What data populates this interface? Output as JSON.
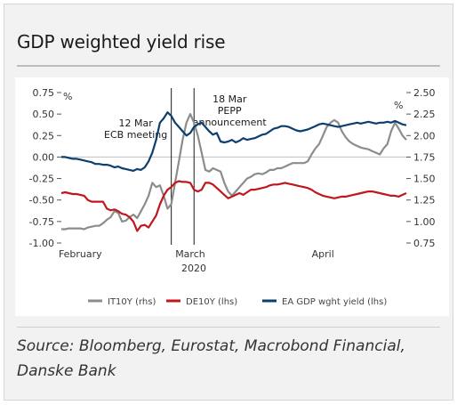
{
  "title": "GDP weighted yield rise",
  "source": "Source: Bloomberg, Eurostat, Macrobond Financial, Danske Bank",
  "chart_data": {
    "type": "line",
    "x": [
      0,
      1,
      2,
      3,
      4,
      5,
      6,
      7,
      8,
      9,
      10,
      11,
      12,
      13,
      14,
      15,
      16,
      17,
      18,
      19,
      20,
      21,
      22,
      23,
      24,
      25,
      26,
      27,
      28,
      29,
      30,
      31,
      32,
      33,
      34,
      35,
      36,
      37,
      38,
      39,
      40,
      41,
      42,
      43,
      44,
      45,
      46,
      47,
      48,
      49,
      50,
      51,
      52,
      53,
      54,
      55,
      56,
      57,
      58,
      59,
      60,
      61,
      62,
      63,
      64,
      65,
      66,
      67,
      68,
      69,
      70,
      71,
      72,
      73,
      74,
      75,
      76,
      77,
      78,
      79,
      80,
      81,
      82,
      83,
      84,
      85,
      86,
      87,
      88,
      89,
      90,
      91
    ],
    "x_tick_labels": [
      {
        "x": 5,
        "label": "February"
      },
      {
        "x": 34,
        "label": "March"
      },
      {
        "x": 69,
        "label": "April"
      }
    ],
    "x_axis_sublabel": "2020",
    "left_axis": {
      "unit": "%",
      "ylim": [
        -1.0,
        0.75
      ],
      "ticks": [
        "0.75",
        "0.50",
        "0.25",
        "0.00",
        "-0.25",
        "-0.50",
        "-0.75",
        "-1.00"
      ],
      "tick_values": [
        0.75,
        0.5,
        0.25,
        0.0,
        -0.25,
        -0.5,
        -0.75,
        -1.0
      ]
    },
    "right_axis": {
      "unit": "%",
      "ylim": [
        0.75,
        2.5
      ],
      "ticks": [
        "2.50",
        "2.25",
        "2.00",
        "1.75",
        "1.50",
        "1.25",
        "1.00",
        "0.75"
      ],
      "tick_values": [
        2.5,
        2.25,
        2.0,
        1.75,
        1.5,
        1.25,
        1.0,
        0.75
      ]
    },
    "annotations": [
      {
        "x": 29,
        "lines": [
          "12 Mar",
          "ECB meeting"
        ]
      },
      {
        "x": 35,
        "lines": [
          "18 Mar",
          "PEPP",
          "announcement"
        ]
      }
    ],
    "series": [
      {
        "name": "IT10Y (rhs)",
        "axis": "right",
        "color": "#8c8c8c",
        "values": [
          0.91,
          0.91,
          0.92,
          0.92,
          0.92,
          0.92,
          0.91,
          0.93,
          0.94,
          0.95,
          0.95,
          0.98,
          1.02,
          1.05,
          1.12,
          1.1,
          1.0,
          1.01,
          1.05,
          1.08,
          1.04,
          1.12,
          1.2,
          1.3,
          1.45,
          1.4,
          1.42,
          1.3,
          1.15,
          1.2,
          1.45,
          1.7,
          1.95,
          2.15,
          2.25,
          2.15,
          2.0,
          1.8,
          1.6,
          1.58,
          1.62,
          1.6,
          1.58,
          1.45,
          1.35,
          1.3,
          1.35,
          1.4,
          1.45,
          1.5,
          1.52,
          1.55,
          1.56,
          1.55,
          1.57,
          1.6,
          1.6,
          1.62,
          1.62,
          1.64,
          1.66,
          1.68,
          1.68,
          1.68,
          1.68,
          1.7,
          1.78,
          1.85,
          1.9,
          2.0,
          2.1,
          2.15,
          2.18,
          2.15,
          2.05,
          1.98,
          1.93,
          1.9,
          1.88,
          1.86,
          1.85,
          1.84,
          1.82,
          1.8,
          1.78,
          1.85,
          1.9,
          2.05,
          2.15,
          2.08,
          2.0,
          1.95
        ]
      },
      {
        "name": "DE10Y (lhs)",
        "axis": "left",
        "color": "#c0161e",
        "values": [
          -0.42,
          -0.41,
          -0.42,
          -0.43,
          -0.43,
          -0.44,
          -0.45,
          -0.5,
          -0.52,
          -0.52,
          -0.52,
          -0.52,
          -0.6,
          -0.62,
          -0.61,
          -0.63,
          -0.66,
          -0.67,
          -0.7,
          -0.75,
          -0.86,
          -0.8,
          -0.79,
          -0.82,
          -0.75,
          -0.68,
          -0.55,
          -0.45,
          -0.38,
          -0.35,
          -0.3,
          -0.28,
          -0.29,
          -0.29,
          -0.3,
          -0.38,
          -0.4,
          -0.38,
          -0.3,
          -0.3,
          -0.32,
          -0.36,
          -0.4,
          -0.44,
          -0.48,
          -0.46,
          -0.44,
          -0.42,
          -0.44,
          -0.41,
          -0.38,
          -0.38,
          -0.37,
          -0.36,
          -0.35,
          -0.33,
          -0.32,
          -0.32,
          -0.31,
          -0.3,
          -0.31,
          -0.32,
          -0.33,
          -0.34,
          -0.35,
          -0.36,
          -0.38,
          -0.41,
          -0.43,
          -0.45,
          -0.46,
          -0.47,
          -0.48,
          -0.47,
          -0.46,
          -0.46,
          -0.45,
          -0.44,
          -0.43,
          -0.42,
          -0.41,
          -0.4,
          -0.4,
          -0.41,
          -0.42,
          -0.43,
          -0.44,
          -0.45,
          -0.45,
          -0.46,
          -0.44,
          -0.42
        ]
      },
      {
        "name": "EA GDP wght yield (lhs)",
        "axis": "left",
        "color": "#0b3f6e",
        "values": [
          0.0,
          0.0,
          -0.01,
          -0.02,
          -0.02,
          -0.03,
          -0.04,
          -0.05,
          -0.06,
          -0.08,
          -0.08,
          -0.09,
          -0.09,
          -0.1,
          -0.12,
          -0.11,
          -0.13,
          -0.14,
          -0.15,
          -0.16,
          -0.14,
          -0.15,
          -0.12,
          -0.05,
          0.05,
          0.2,
          0.4,
          0.45,
          0.52,
          0.48,
          0.4,
          0.35,
          0.3,
          0.25,
          0.28,
          0.35,
          0.38,
          0.4,
          0.35,
          0.3,
          0.26,
          0.28,
          0.18,
          0.17,
          0.18,
          0.2,
          0.17,
          0.19,
          0.22,
          0.2,
          0.21,
          0.22,
          0.24,
          0.26,
          0.27,
          0.3,
          0.33,
          0.34,
          0.36,
          0.36,
          0.35,
          0.33,
          0.31,
          0.3,
          0.31,
          0.32,
          0.34,
          0.36,
          0.38,
          0.39,
          0.38,
          0.37,
          0.36,
          0.35,
          0.36,
          0.37,
          0.38,
          0.39,
          0.4,
          0.39,
          0.4,
          0.41,
          0.4,
          0.39,
          0.4,
          0.4,
          0.41,
          0.4,
          0.42,
          0.4,
          0.38,
          0.37
        ]
      }
    ],
    "legend": {
      "placement": "bottom"
    }
  }
}
